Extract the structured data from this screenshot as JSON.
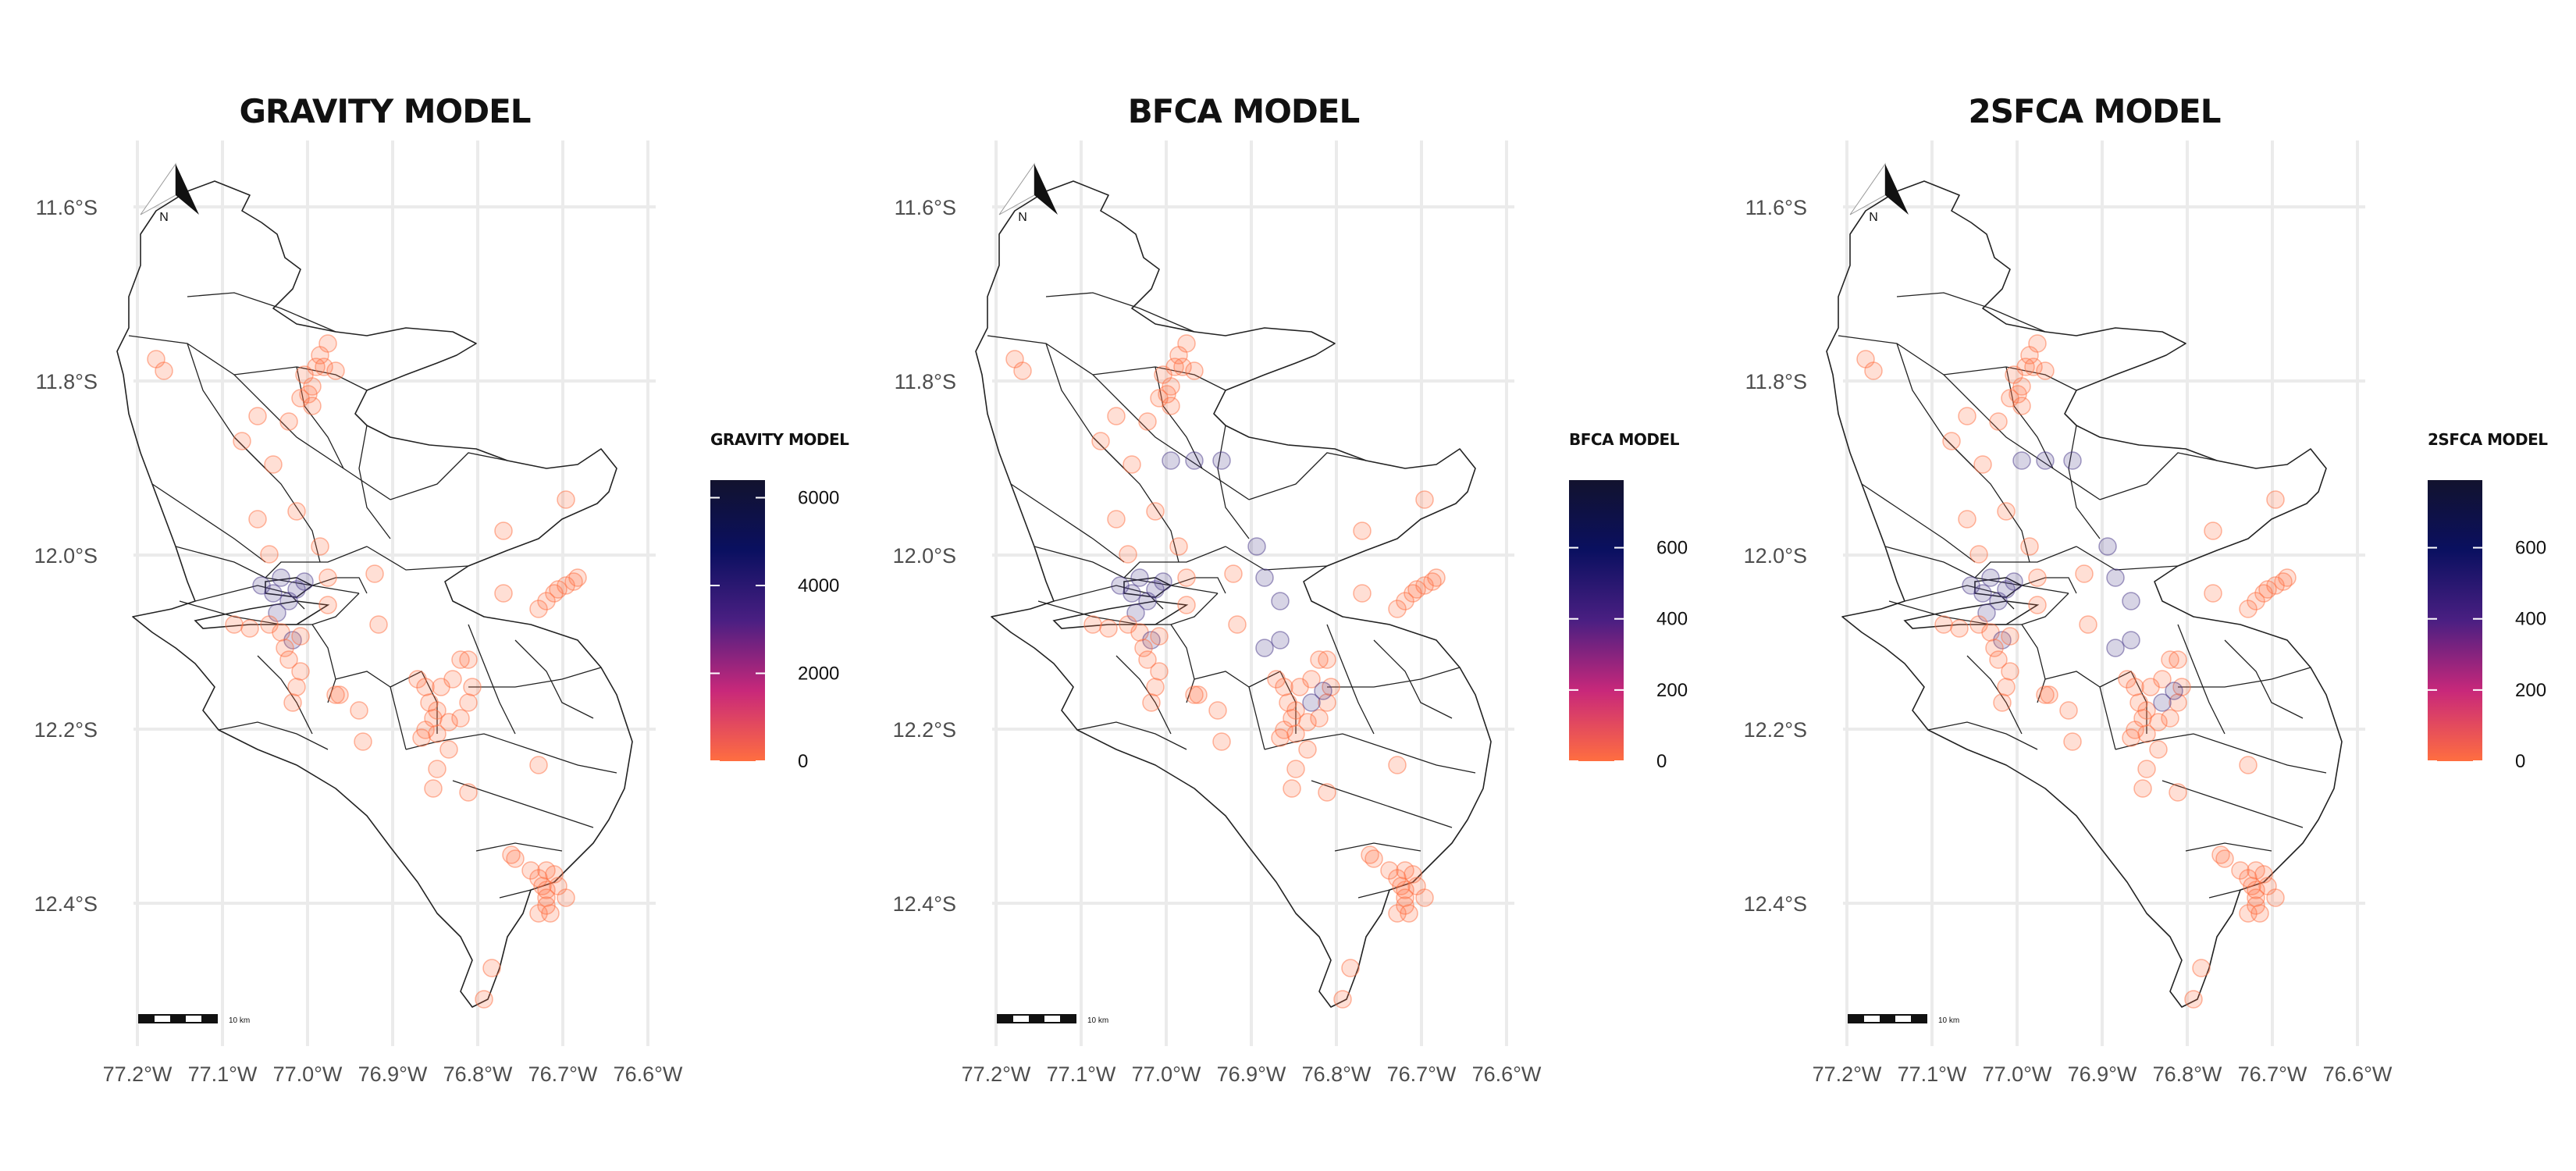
{
  "colors": {
    "grid": "#ebebeb",
    "boundary": "#222222",
    "scale_low": "#ff6e40",
    "scale_mid1": "#c8287a",
    "scale_mid2": "#4a1f82",
    "scale_mid3": "#0a1060",
    "scale_high": "#12122e"
  },
  "north_arrow_label": "N",
  "scale_bar_label": "10 km",
  "panels": [
    {
      "title": "GRAVITY MODEL",
      "legend_title": "GRAVITY MODEL",
      "legend_max": 6400,
      "legend_ticks": [
        0,
        2000,
        4000,
        6000
      ]
    },
    {
      "title": "BFCA MODEL",
      "legend_title": "BFCA MODEL",
      "legend_max": 790,
      "legend_ticks": [
        0,
        200,
        400,
        600
      ]
    },
    {
      "title": "2SFCA MODEL",
      "legend_title": "2SFCA MODEL",
      "legend_max": 790,
      "legend_ticks": [
        0,
        200,
        400,
        600
      ]
    }
  ],
  "axes": {
    "x_ticks": [
      {
        "value": -77.2,
        "label": "77.2°W"
      },
      {
        "value": -77.1,
        "label": "77.1°W"
      },
      {
        "value": -77.0,
        "label": "77.0°W"
      },
      {
        "value": -76.9,
        "label": "76.9°W"
      },
      {
        "value": -76.8,
        "label": "76.8°W"
      },
      {
        "value": -76.7,
        "label": "76.7°W"
      },
      {
        "value": -76.6,
        "label": "76.6°W"
      }
    ],
    "y_ticks": [
      {
        "value": -11.6,
        "label": "11.6°S"
      },
      {
        "value": -11.8,
        "label": "11.8°S"
      },
      {
        "value": -12.0,
        "label": "12.0°S"
      },
      {
        "value": -12.2,
        "label": "12.2°S"
      },
      {
        "value": -12.4,
        "label": "12.4°S"
      }
    ]
  }
}
